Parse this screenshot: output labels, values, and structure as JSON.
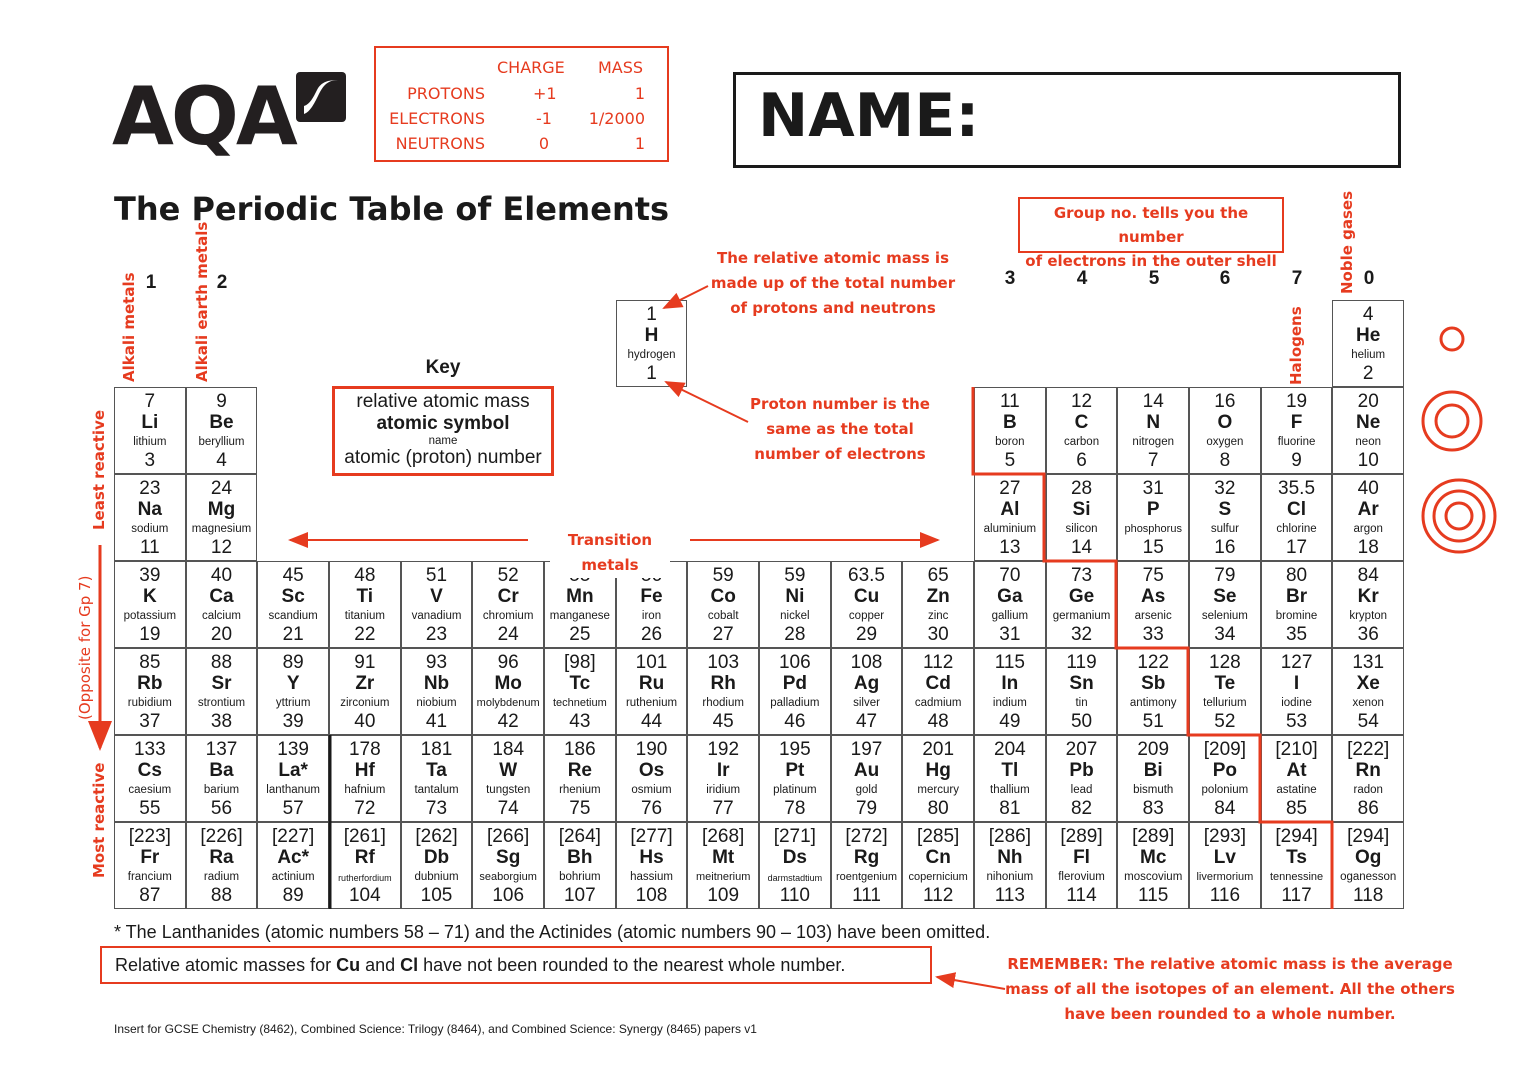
{
  "logo": {
    "text": "AQA"
  },
  "charges": {
    "headers": [
      "CHARGE",
      "MASS"
    ],
    "rows": [
      {
        "particle": "PROTONS",
        "charge": "+1",
        "mass": "1"
      },
      {
        "particle": "ELECTRONS",
        "charge": "-1",
        "mass": "1/2000"
      },
      {
        "particle": "NEUTRONS",
        "charge": "0",
        "mass": "1"
      }
    ]
  },
  "name_label": "NAME:",
  "title": "The Periodic Table of Elements",
  "group_note": [
    "Group no. tells you the number",
    "of electrons in the outer shell"
  ],
  "groups": [
    "1",
    "2",
    "3",
    "4",
    "5",
    "6",
    "7",
    "0"
  ],
  "labels": {
    "alkali": "Alkali metals",
    "alkali_earth": "Alkali earth metals",
    "least": "Least reactive",
    "opposite": "(Opposite for Gp 7)",
    "most": "Most  reactive",
    "halogens": "Halogens",
    "noble": "Noble gases",
    "transition": "Transition metals"
  },
  "key": {
    "title": "Key",
    "mass": "relative atomic mass",
    "symbol": "atomic symbol",
    "name": "name",
    "number": "atomic (proton) number"
  },
  "annotations": {
    "mass": [
      "The relative atomic mass is",
      "made up of the total number",
      "of protons and neutrons"
    ],
    "proton": [
      "Proton number is the",
      "same as the total",
      "number of electrons"
    ],
    "remember_bold": "REMEMBER:",
    "remember": [
      " The relative atomic mass is the average",
      "mass of all the isotopes of an element. All the others",
      "have been rounded to a whole number."
    ]
  },
  "footnotes": {
    "omitted": "* The Lanthanides (atomic numbers 58 – 71) and the Actinides (atomic numbers 90 – 103) have been omitted.",
    "rounding": {
      "a": "Relative atomic masses for ",
      "cu": "Cu",
      "b": " and ",
      "cl": "Cl",
      "c": " have not been rounded to the nearest whole number."
    },
    "insert": "Insert for GCSE Chemistry (8462), Combined Science: Trilogy (8464), and Combined Science: Synergy (8465) papers v1"
  },
  "colors": {
    "accent": "#e63b1f",
    "text": "#1a1a1a"
  },
  "shell_diagrams": [
    1,
    2,
    3
  ],
  "periods": [
    [
      null,
      null,
      null,
      null,
      null,
      null,
      null,
      {
        "m": "1",
        "s": "H",
        "n": "hydrogen",
        "z": "1"
      },
      null,
      null,
      null,
      null,
      null,
      null,
      null,
      null,
      null,
      {
        "m": "4",
        "s": "He",
        "n": "helium",
        "z": "2"
      }
    ],
    [
      {
        "m": "7",
        "s": "Li",
        "n": "lithium",
        "z": "3"
      },
      {
        "m": "9",
        "s": "Be",
        "n": "beryllium",
        "z": "4"
      },
      null,
      null,
      null,
      null,
      null,
      null,
      null,
      null,
      null,
      null,
      {
        "m": "11",
        "s": "B",
        "n": "boron",
        "z": "5"
      },
      {
        "m": "12",
        "s": "C",
        "n": "carbon",
        "z": "6"
      },
      {
        "m": "14",
        "s": "N",
        "n": "nitrogen",
        "z": "7"
      },
      {
        "m": "16",
        "s": "O",
        "n": "oxygen",
        "z": "8"
      },
      {
        "m": "19",
        "s": "F",
        "n": "fluorine",
        "z": "9"
      },
      {
        "m": "20",
        "s": "Ne",
        "n": "neon",
        "z": "10"
      }
    ],
    [
      {
        "m": "23",
        "s": "Na",
        "n": "sodium",
        "z": "11"
      },
      {
        "m": "24",
        "s": "Mg",
        "n": "magnesium",
        "z": "12"
      },
      null,
      null,
      null,
      null,
      null,
      null,
      null,
      null,
      null,
      null,
      {
        "m": "27",
        "s": "Al",
        "n": "aluminium",
        "z": "13"
      },
      {
        "m": "28",
        "s": "Si",
        "n": "silicon",
        "z": "14"
      },
      {
        "m": "31",
        "s": "P",
        "n": "phosphorus",
        "z": "15"
      },
      {
        "m": "32",
        "s": "S",
        "n": "sulfur",
        "z": "16"
      },
      {
        "m": "35.5",
        "s": "Cl",
        "n": "chlorine",
        "z": "17"
      },
      {
        "m": "40",
        "s": "Ar",
        "n": "argon",
        "z": "18"
      }
    ],
    [
      {
        "m": "39",
        "s": "K",
        "n": "potassium",
        "z": "19"
      },
      {
        "m": "40",
        "s": "Ca",
        "n": "calcium",
        "z": "20"
      },
      {
        "m": "45",
        "s": "Sc",
        "n": "scandium",
        "z": "21"
      },
      {
        "m": "48",
        "s": "Ti",
        "n": "titanium",
        "z": "22"
      },
      {
        "m": "51",
        "s": "V",
        "n": "vanadium",
        "z": "23"
      },
      {
        "m": "52",
        "s": "Cr",
        "n": "chromium",
        "z": "24"
      },
      {
        "m": "55",
        "s": "Mn",
        "n": "manganese",
        "z": "25"
      },
      {
        "m": "56",
        "s": "Fe",
        "n": "iron",
        "z": "26"
      },
      {
        "m": "59",
        "s": "Co",
        "n": "cobalt",
        "z": "27"
      },
      {
        "m": "59",
        "s": "Ni",
        "n": "nickel",
        "z": "28"
      },
      {
        "m": "63.5",
        "s": "Cu",
        "n": "copper",
        "z": "29"
      },
      {
        "m": "65",
        "s": "Zn",
        "n": "zinc",
        "z": "30"
      },
      {
        "m": "70",
        "s": "Ga",
        "n": "gallium",
        "z": "31"
      },
      {
        "m": "73",
        "s": "Ge",
        "n": "germanium",
        "z": "32"
      },
      {
        "m": "75",
        "s": "As",
        "n": "arsenic",
        "z": "33"
      },
      {
        "m": "79",
        "s": "Se",
        "n": "selenium",
        "z": "34"
      },
      {
        "m": "80",
        "s": "Br",
        "n": "bromine",
        "z": "35"
      },
      {
        "m": "84",
        "s": "Kr",
        "n": "krypton",
        "z": "36"
      }
    ],
    [
      {
        "m": "85",
        "s": "Rb",
        "n": "rubidium",
        "z": "37"
      },
      {
        "m": "88",
        "s": "Sr",
        "n": "strontium",
        "z": "38"
      },
      {
        "m": "89",
        "s": "Y",
        "n": "yttrium",
        "z": "39"
      },
      {
        "m": "91",
        "s": "Zr",
        "n": "zirconium",
        "z": "40"
      },
      {
        "m": "93",
        "s": "Nb",
        "n": "niobium",
        "z": "41"
      },
      {
        "m": "96",
        "s": "Mo",
        "n": "molybdenum",
        "z": "42"
      },
      {
        "m": "[98]",
        "s": "Tc",
        "n": "technetium",
        "z": "43"
      },
      {
        "m": "101",
        "s": "Ru",
        "n": "ruthenium",
        "z": "44"
      },
      {
        "m": "103",
        "s": "Rh",
        "n": "rhodium",
        "z": "45"
      },
      {
        "m": "106",
        "s": "Pd",
        "n": "palladium",
        "z": "46"
      },
      {
        "m": "108",
        "s": "Ag",
        "n": "silver",
        "z": "47"
      },
      {
        "m": "112",
        "s": "Cd",
        "n": "cadmium",
        "z": "48"
      },
      {
        "m": "115",
        "s": "In",
        "n": "indium",
        "z": "49"
      },
      {
        "m": "119",
        "s": "Sn",
        "n": "tin",
        "z": "50"
      },
      {
        "m": "122",
        "s": "Sb",
        "n": "antimony",
        "z": "51"
      },
      {
        "m": "128",
        "s": "Te",
        "n": "tellurium",
        "z": "52"
      },
      {
        "m": "127",
        "s": "I",
        "n": "iodine",
        "z": "53"
      },
      {
        "m": "131",
        "s": "Xe",
        "n": "xenon",
        "z": "54"
      }
    ],
    [
      {
        "m": "133",
        "s": "Cs",
        "n": "caesium",
        "z": "55"
      },
      {
        "m": "137",
        "s": "Ba",
        "n": "barium",
        "z": "56"
      },
      {
        "m": "139",
        "s": "La*",
        "n": "lanthanum",
        "z": "57"
      },
      {
        "m": "178",
        "s": "Hf",
        "n": "hafnium",
        "z": "72"
      },
      {
        "m": "181",
        "s": "Ta",
        "n": "tantalum",
        "z": "73"
      },
      {
        "m": "184",
        "s": "W",
        "n": "tungsten",
        "z": "74"
      },
      {
        "m": "186",
        "s": "Re",
        "n": "rhenium",
        "z": "75"
      },
      {
        "m": "190",
        "s": "Os",
        "n": "osmium",
        "z": "76"
      },
      {
        "m": "192",
        "s": "Ir",
        "n": "iridium",
        "z": "77"
      },
      {
        "m": "195",
        "s": "Pt",
        "n": "platinum",
        "z": "78"
      },
      {
        "m": "197",
        "s": "Au",
        "n": "gold",
        "z": "79"
      },
      {
        "m": "201",
        "s": "Hg",
        "n": "mercury",
        "z": "80"
      },
      {
        "m": "204",
        "s": "Tl",
        "n": "thallium",
        "z": "81"
      },
      {
        "m": "207",
        "s": "Pb",
        "n": "lead",
        "z": "82"
      },
      {
        "m": "209",
        "s": "Bi",
        "n": "bismuth",
        "z": "83"
      },
      {
        "m": "[209]",
        "s": "Po",
        "n": "polonium",
        "z": "84"
      },
      {
        "m": "[210]",
        "s": "At",
        "n": "astatine",
        "z": "85"
      },
      {
        "m": "[222]",
        "s": "Rn",
        "n": "radon",
        "z": "86"
      }
    ],
    [
      {
        "m": "[223]",
        "s": "Fr",
        "n": "francium",
        "z": "87"
      },
      {
        "m": "[226]",
        "s": "Ra",
        "n": "radium",
        "z": "88"
      },
      {
        "m": "[227]",
        "s": "Ac*",
        "n": "actinium",
        "z": "89"
      },
      {
        "m": "[261]",
        "s": "Rf",
        "n": "rutherfordium",
        "z": "104"
      },
      {
        "m": "[262]",
        "s": "Db",
        "n": "dubnium",
        "z": "105"
      },
      {
        "m": "[266]",
        "s": "Sg",
        "n": "seaborgium",
        "z": "106"
      },
      {
        "m": "[264]",
        "s": "Bh",
        "n": "bohrium",
        "z": "107"
      },
      {
        "m": "[277]",
        "s": "Hs",
        "n": "hassium",
        "z": "108"
      },
      {
        "m": "[268]",
        "s": "Mt",
        "n": "meitnerium",
        "z": "109"
      },
      {
        "m": "[271]",
        "s": "Ds",
        "n": "darmstadtium",
        "z": "110"
      },
      {
        "m": "[272]",
        "s": "Rg",
        "n": "roentgenium",
        "z": "111"
      },
      {
        "m": "[285]",
        "s": "Cn",
        "n": "copernicium",
        "z": "112"
      },
      {
        "m": "[286]",
        "s": "Nh",
        "n": "nihonium",
        "z": "113"
      },
      {
        "m": "[289]",
        "s": "Fl",
        "n": "flerovium",
        "z": "114"
      },
      {
        "m": "[289]",
        "s": "Mc",
        "n": "moscovium",
        "z": "115"
      },
      {
        "m": "[293]",
        "s": "Lv",
        "n": "livermorium",
        "z": "116"
      },
      {
        "m": "[294]",
        "s": "Ts",
        "n": "tennessine",
        "z": "117"
      },
      {
        "m": "[294]",
        "s": "Og",
        "n": "oganesson",
        "z": "118"
      }
    ]
  ]
}
